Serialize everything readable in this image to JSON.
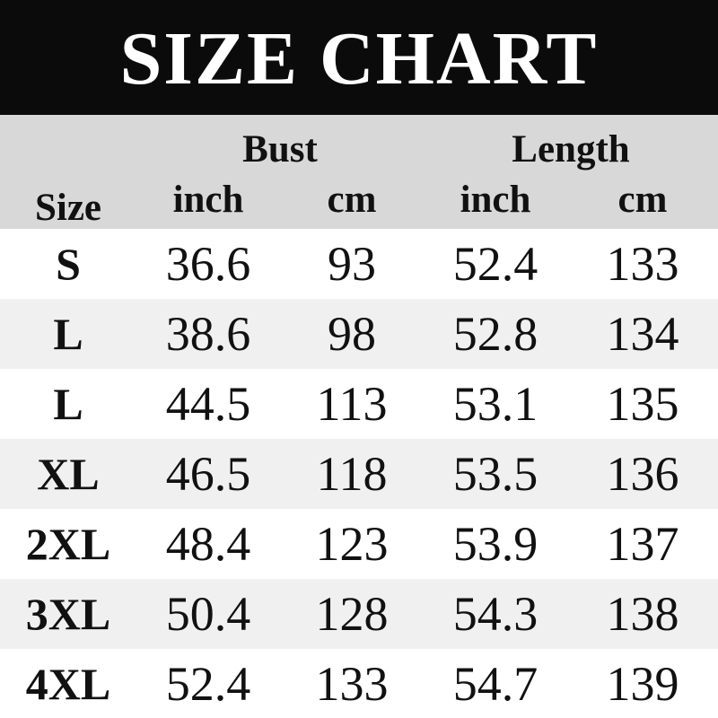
{
  "title": "SIZE CHART",
  "colors": {
    "banner_bg": "#0b0b0b",
    "title_color": "#ffffff",
    "header_bg": "#d8d8d8",
    "alt_row_bg": "#f0f0f0",
    "text_color": "#111111"
  },
  "chart_data": {
    "type": "table",
    "title": "SIZE CHART",
    "columns": [
      "Size",
      "Bust (inch)",
      "Bust (cm)",
      "Length (inch)",
      "Length (cm)"
    ],
    "header": {
      "size": "Size",
      "bust": "Bust",
      "length": "Length",
      "units": [
        "inch",
        "cm",
        "inch",
        "cm"
      ]
    },
    "rows": [
      {
        "size": "S",
        "values": [
          "36.6",
          "93",
          "52.4",
          "133"
        ]
      },
      {
        "size": "L",
        "values": [
          "38.6",
          "98",
          "52.8",
          "134"
        ]
      },
      {
        "size": "L",
        "values": [
          "44.5",
          "113",
          "53.1",
          "135"
        ]
      },
      {
        "size": "XL",
        "values": [
          "46.5",
          "118",
          "53.5",
          "136"
        ]
      },
      {
        "size": "2XL",
        "values": [
          "48.4",
          "123",
          "53.9",
          "137"
        ]
      },
      {
        "size": "3XL",
        "values": [
          "50.4",
          "128",
          "54.3",
          "138"
        ]
      },
      {
        "size": "4XL",
        "values": [
          "52.4",
          "133",
          "54.7",
          "139"
        ]
      }
    ]
  }
}
